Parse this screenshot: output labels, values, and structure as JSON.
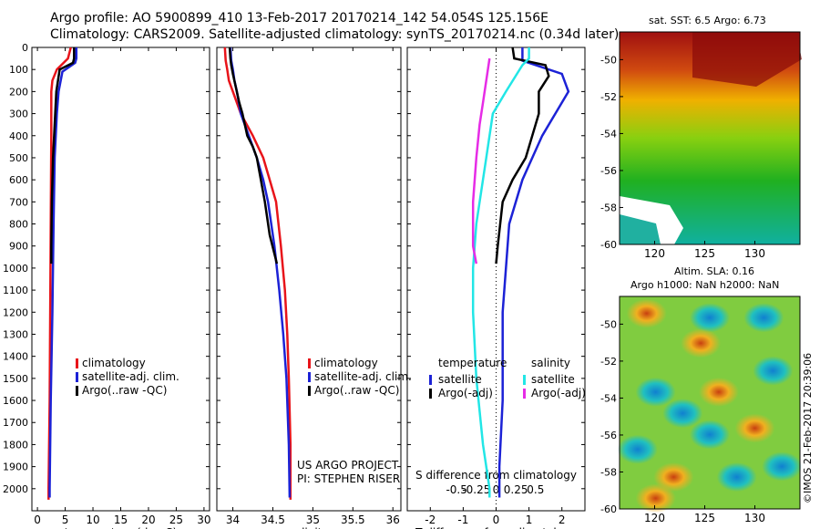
{
  "header": {
    "line1": "Argo profile: AO 5900899_410 13-Feb-2017 20170214_142 54.054S 125.156E",
    "line2": "Climatology: CARS2009. Satellite-adjusted climatology: synTS_20170214.nc (0.34d later)"
  },
  "map_top": {
    "title": "sat. SST: 6.5 Argo: 6.73",
    "x_ticks": [
      "120",
      "125",
      "130"
    ],
    "y_ticks": [
      "-50",
      "-52",
      "-54",
      "-56",
      "-58",
      "-60"
    ]
  },
  "map_bottom": {
    "title_line1": "Altim. SLA: 0.16",
    "title_line2": "Argo h1000: NaN h2000: NaN",
    "x_ticks": [
      "120",
      "125",
      "130"
    ],
    "y_ticks": [
      "-50",
      "-52",
      "-54",
      "-56",
      "-58",
      "-60"
    ]
  },
  "stamp": "©IMOS 21-Feb-2017 20:39:06",
  "project": {
    "line1": "US ARGO PROJECT",
    "line2": "PI: STEPHEN RISER"
  },
  "legend_profiles": [
    "climatology",
    "satellite-adj. clim.",
    "Argo(..raw -QC)"
  ],
  "legend_diff": {
    "temperature_head": "temperature",
    "salinity_head": "salinity",
    "items_left": [
      "satellite",
      "Argo(-adj)"
    ],
    "items_right": [
      "satellite",
      "Argo(-adj)"
    ]
  },
  "colors": {
    "climatology": "#e8141a",
    "satellite": "#1c22d6",
    "argo": "#000000",
    "sal_satellite": "#22e6e6",
    "sal_argo": "#e62ce6"
  },
  "chart_data": [
    {
      "type": "line",
      "title": "",
      "xlabel": "temperature (deg C)",
      "ylabel": "",
      "xlim": [
        -1,
        31
      ],
      "ylim": [
        2100,
        0
      ],
      "x_ticks": [
        "0",
        "5",
        "10",
        "15",
        "20",
        "25",
        "30"
      ],
      "y_ticks": [
        "0",
        "100",
        "200",
        "300",
        "400",
        "500",
        "600",
        "700",
        "800",
        "900",
        "1000",
        "1100",
        "1200",
        "1300",
        "1400",
        "1500",
        "1600",
        "1700",
        "1800",
        "1900",
        "2000"
      ],
      "series": [
        {
          "name": "climatology",
          "points": [
            [
              6.0,
              0
            ],
            [
              5.5,
              50
            ],
            [
              3.5,
              100
            ],
            [
              2.7,
              150
            ],
            [
              2.5,
              200
            ],
            [
              2.5,
              400
            ],
            [
              2.4,
              800
            ],
            [
              2.3,
              1200
            ],
            [
              2.2,
              1600
            ],
            [
              2.0,
              2000
            ],
            [
              2.0,
              2050
            ]
          ]
        },
        {
          "name": "satellite-adj. clim.",
          "points": [
            [
              7.0,
              0
            ],
            [
              7.0,
              50
            ],
            [
              6.8,
              70
            ],
            [
              4.5,
              110
            ],
            [
              3.8,
              200
            ],
            [
              3.5,
              300
            ],
            [
              3.1,
              500
            ],
            [
              2.9,
              800
            ],
            [
              2.7,
              1200
            ],
            [
              2.4,
              1600
            ],
            [
              2.2,
              2000
            ],
            [
              2.2,
              2040
            ]
          ]
        },
        {
          "name": "Argo(..raw -QC)",
          "points": [
            [
              6.6,
              0
            ],
            [
              6.6,
              50
            ],
            [
              6.4,
              70
            ],
            [
              4.0,
              100
            ],
            [
              3.4,
              200
            ],
            [
              3.2,
              300
            ],
            [
              3.0,
              400
            ],
            [
              2.8,
              500
            ],
            [
              2.6,
              700
            ],
            [
              2.5,
              900
            ],
            [
              2.5,
              980
            ]
          ]
        }
      ]
    },
    {
      "type": "line",
      "title": "",
      "xlabel": "salinity",
      "ylabel": "",
      "xlim": [
        33.8,
        36.1
      ],
      "ylim": [
        2100,
        0
      ],
      "x_ticks": [
        "34",
        "34.5",
        "35",
        "35.5",
        "36"
      ],
      "series": [
        {
          "name": "climatology",
          "points": [
            [
              33.9,
              0
            ],
            [
              33.91,
              60
            ],
            [
              33.93,
              100
            ],
            [
              33.95,
              150
            ],
            [
              34.0,
              200
            ],
            [
              34.1,
              300
            ],
            [
              34.25,
              400
            ],
            [
              34.38,
              500
            ],
            [
              34.46,
              600
            ],
            [
              34.54,
              700
            ],
            [
              34.6,
              900
            ],
            [
              34.65,
              1100
            ],
            [
              34.68,
              1300
            ],
            [
              34.7,
              1500
            ],
            [
              34.72,
              1800
            ],
            [
              34.72,
              2050
            ]
          ]
        },
        {
          "name": "satellite-adj. clim.",
          "points": [
            [
              33.97,
              0
            ],
            [
              33.98,
              60
            ],
            [
              34.0,
              100
            ],
            [
              34.02,
              150
            ],
            [
              34.05,
              200
            ],
            [
              34.1,
              300
            ],
            [
              34.2,
              400
            ],
            [
              34.3,
              500
            ],
            [
              34.38,
              600
            ],
            [
              34.44,
              700
            ],
            [
              34.52,
              900
            ],
            [
              34.58,
              1100
            ],
            [
              34.63,
              1300
            ],
            [
              34.67,
              1500
            ],
            [
              34.7,
              1800
            ],
            [
              34.71,
              2040
            ]
          ]
        },
        {
          "name": "Argo(..raw -QC)",
          "points": [
            [
              33.96,
              0
            ],
            [
              33.97,
              50
            ],
            [
              33.98,
              80
            ],
            [
              34.0,
              120
            ],
            [
              34.08,
              250
            ],
            [
              34.12,
              300
            ],
            [
              34.18,
              400
            ],
            [
              34.25,
              450
            ],
            [
              34.3,
              500
            ],
            [
              34.35,
              600
            ],
            [
              34.4,
              700
            ],
            [
              34.46,
              850
            ],
            [
              34.55,
              980
            ]
          ]
        }
      ]
    },
    {
      "type": "line",
      "title": "",
      "xlabel": "T difference from climatology",
      "ylabel": "",
      "xlim": [
        -2.7,
        2.7
      ],
      "ylim": [
        2100,
        0
      ],
      "x_ticks": [
        "-2",
        "-1",
        "0",
        "1",
        "2"
      ],
      "top_axis_label": "S difference from climatology",
      "top_ticks": [
        "-0.5",
        "-0.25",
        "0",
        "0.25",
        "0.5"
      ],
      "series": [
        {
          "name": "temperature satellite",
          "points": [
            [
              0.8,
              0
            ],
            [
              0.8,
              60
            ],
            [
              1.0,
              70
            ],
            [
              2.0,
              120
            ],
            [
              2.2,
              200
            ],
            [
              1.8,
              300
            ],
            [
              1.4,
              400
            ],
            [
              0.8,
              600
            ],
            [
              0.4,
              800
            ],
            [
              0.3,
              1000
            ],
            [
              0.2,
              1200
            ],
            [
              0.2,
              1600
            ],
            [
              0.1,
              1900
            ],
            [
              0.1,
              2040
            ]
          ]
        },
        {
          "name": "temperature Argo(-adj)",
          "points": [
            [
              0.5,
              0
            ],
            [
              0.55,
              50
            ],
            [
              1.5,
              80
            ],
            [
              1.6,
              130
            ],
            [
              1.3,
              200
            ],
            [
              1.3,
              300
            ],
            [
              1.1,
              400
            ],
            [
              0.9,
              500
            ],
            [
              0.5,
              600
            ],
            [
              0.2,
              700
            ],
            [
              0.05,
              900
            ],
            [
              0.0,
              980
            ]
          ]
        },
        {
          "name": "salinity satellite",
          "points": [
            [
              1.0,
              0
            ],
            [
              1.0,
              50
            ],
            [
              0.8,
              80
            ],
            [
              0.3,
              200
            ],
            [
              -0.1,
              300
            ],
            [
              -0.3,
              500
            ],
            [
              -0.6,
              800
            ],
            [
              -0.7,
              1000
            ],
            [
              -0.7,
              1200
            ],
            [
              -0.6,
              1500
            ],
            [
              -0.4,
              1800
            ],
            [
              -0.2,
              2000
            ],
            [
              -0.2,
              2040
            ]
          ]
        },
        {
          "name": "salinity Argo(-adj)",
          "points": [
            [
              -0.2,
              50
            ],
            [
              -0.3,
              150
            ],
            [
              -0.4,
              250
            ],
            [
              -0.5,
              350
            ],
            [
              -0.6,
              500
            ],
            [
              -0.7,
              700
            ],
            [
              -0.7,
              900
            ],
            [
              -0.6,
              980
            ]
          ]
        }
      ]
    }
  ]
}
